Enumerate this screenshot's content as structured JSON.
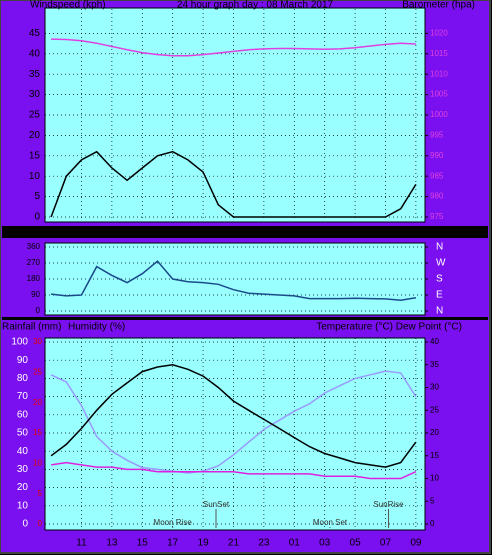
{
  "chart_data": [
    {
      "type": "line",
      "title": "24 hour graph day : 08 March 2017",
      "y_label": "Windspeed (kph)",
      "y2_label": "Barometer (hpa)",
      "xlim": [
        8.6,
        33.6
      ],
      "xticks": [
        11,
        13,
        15,
        17,
        19,
        21,
        23,
        {
          "value": 25,
          "label": "01"
        },
        {
          "value": 27,
          "label": "03"
        },
        {
          "value": 29,
          "label": "05"
        },
        {
          "value": 31,
          "label": "07"
        },
        {
          "value": 33,
          "label": "09"
        }
      ],
      "ylim": [
        0,
        50
      ],
      "yticks": [
        0,
        5,
        10,
        15,
        20,
        25,
        30,
        35,
        40,
        45
      ],
      "y2lim": [
        975,
        1025
      ],
      "y2ticks": [
        975,
        980,
        985,
        990,
        995,
        1000,
        1005,
        1010,
        1015,
        1020
      ],
      "grid": true,
      "x": [
        9,
        10,
        11,
        12,
        13,
        14,
        15,
        16,
        17,
        18,
        19,
        20,
        21,
        22,
        23,
        24,
        25,
        26,
        27,
        28,
        29,
        30,
        31,
        32,
        33
      ],
      "series": [
        {
          "color": "#000000",
          "values": [
            0,
            10,
            14,
            16,
            12,
            9,
            12,
            15,
            16,
            14,
            11,
            3,
            0,
            0,
            0,
            0,
            0,
            0,
            0,
            0,
            0,
            0,
            0,
            2,
            8
          ]
        },
        {
          "color": "#e040e0",
          "axis": "y2",
          "values": [
            1018.6,
            1018.5,
            1018.2,
            1017.6,
            1016.8,
            1016,
            1015.3,
            1014.8,
            1014.5,
            1014.5,
            1014.8,
            1015.2,
            1015.6,
            1016,
            1016.2,
            1016.3,
            1016.3,
            1016.2,
            1016.1,
            1016.2,
            1016.5,
            1016.9,
            1017.3,
            1017.6,
            1017.4
          ]
        }
      ]
    },
    {
      "type": "line",
      "xlim": [
        8.6,
        33.6
      ],
      "ylim": [
        0,
        360
      ],
      "yticks": [
        0,
        90,
        180,
        270,
        360
      ],
      "y2lim": [
        0,
        360
      ],
      "y2ticks": [
        {
          "value": 0,
          "label": "N"
        },
        {
          "value": 90,
          "label": "E"
        },
        {
          "value": 180,
          "label": "S"
        },
        {
          "value": 270,
          "label": "W"
        },
        {
          "value": 360,
          "label": "N"
        }
      ],
      "grid": true,
      "x": [
        9,
        10,
        11,
        12,
        13,
        14,
        15,
        16,
        17,
        18,
        19,
        20,
        21,
        22,
        23,
        24,
        25,
        26,
        27,
        28,
        29,
        30,
        31,
        32,
        33
      ],
      "series": [
        {
          "color": "#1a4a8a",
          "values": [
            95,
            85,
            90,
            250,
            200,
            160,
            210,
            280,
            180,
            165,
            160,
            150,
            120,
            100,
            95,
            90,
            85,
            70,
            70,
            70,
            72,
            70,
            68,
            60,
            75
          ]
        }
      ]
    },
    {
      "type": "line",
      "rain_label": "Rainfall (mm)",
      "y_label": "Humidity (%)",
      "y2_label": "Temperature (°C)",
      "dew_label": "Dew Point (°C)",
      "xlim": [
        8.6,
        33.6
      ],
      "xticks": [
        11,
        13,
        15,
        17,
        19,
        21,
        23,
        {
          "value": 25,
          "label": "01"
        },
        {
          "value": 27,
          "label": "03"
        },
        {
          "value": 29,
          "label": "05"
        },
        {
          "value": 31,
          "label": "07"
        },
        {
          "value": 33,
          "label": "09"
        }
      ],
      "ylim": [
        0,
        100
      ],
      "yticks": [
        0,
        10,
        20,
        30,
        40,
        50,
        60,
        70,
        80,
        90,
        100
      ],
      "rain_lim": [
        0,
        30
      ],
      "rain_ticks": [
        0,
        5,
        10,
        15,
        20,
        25,
        30
      ],
      "y2lim": [
        0,
        40
      ],
      "y2ticks": [
        0,
        5,
        10,
        15,
        20,
        25,
        30,
        35,
        40
      ],
      "grid": true,
      "x": [
        9,
        10,
        11,
        12,
        13,
        14,
        15,
        16,
        17,
        18,
        19,
        20,
        21,
        22,
        23,
        24,
        25,
        26,
        27,
        28,
        29,
        30,
        31,
        32,
        33
      ],
      "series": [
        {
          "color": "#9a9aff",
          "values": [
            82,
            78,
            65,
            48,
            40,
            35,
            31,
            30,
            29,
            28,
            29,
            32,
            38,
            45,
            52,
            57,
            62,
            66,
            72,
            76,
            80,
            82,
            84,
            83,
            70
          ]
        },
        {
          "color": "#000000",
          "axis": "y2",
          "values": [
            15,
            17.5,
            21,
            25,
            28.5,
            31,
            33.5,
            34.5,
            35,
            34,
            32.5,
            30,
            27,
            25,
            23,
            21,
            19,
            17,
            15.5,
            14.5,
            13.5,
            13,
            12.5,
            13.5,
            18
          ]
        },
        {
          "color": "#e020e0",
          "axis": "y2",
          "values": [
            13,
            13.5,
            13,
            12.5,
            12.5,
            12,
            12,
            11.5,
            11.5,
            11.5,
            11.5,
            11.5,
            11.5,
            11,
            11,
            11,
            11,
            11,
            10.5,
            10.5,
            10.5,
            10,
            10,
            10,
            11.5
          ]
        }
      ],
      "annotations": [
        {
          "text": "Moon Rise",
          "x": 17,
          "row": 0
        },
        {
          "text": "SunSet",
          "x": 19.85,
          "row": 1
        },
        {
          "text": "Moon Set",
          "x": 27.35,
          "row": 0
        },
        {
          "text": "SunRise",
          "x": 31.2,
          "row": 1
        }
      ]
    }
  ]
}
